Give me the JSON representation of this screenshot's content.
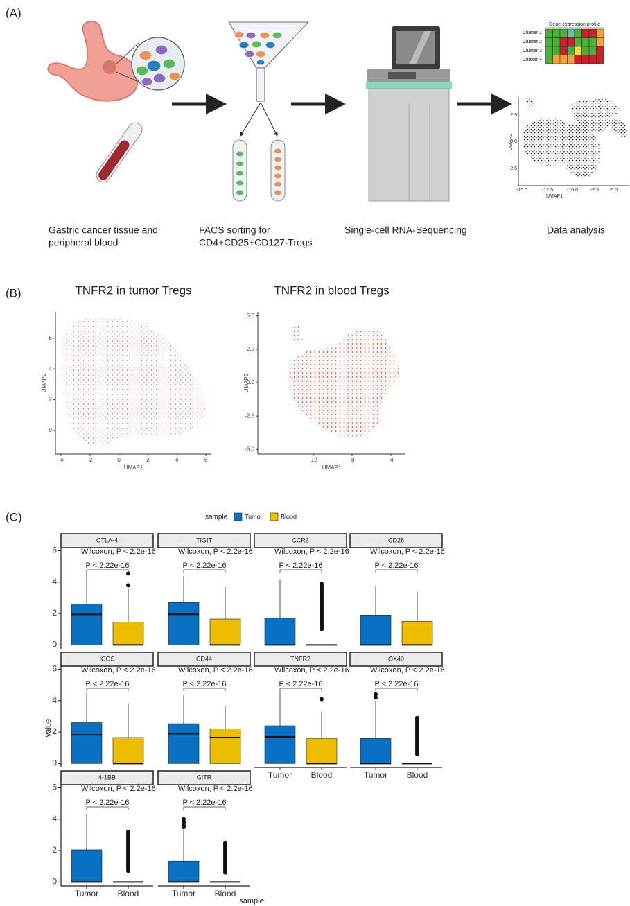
{
  "panel_labels": [
    "(A)",
    "(B)",
    "(C)"
  ],
  "panel_a": {
    "captions": [
      [
        "Gastric cancer tissue and",
        "peripheral blood"
      ],
      [
        "FACS sorting for",
        "CD4+CD25+CD127-Tregs"
      ],
      [
        "Single-cell RNA-Sequencing"
      ],
      [
        "Data analysis"
      ]
    ],
    "heatmap": {
      "title": "Gene expression profile",
      "rows": [
        "Cluster 1",
        "Cluster 2",
        "Cluster 3",
        "Cluster 4"
      ]
    },
    "umap": {
      "x_label": "UMAP1",
      "y_label": "UMAP2",
      "xticks": [
        "-15.0",
        "-12.5",
        "-10.0",
        "-7.5",
        "-5.0"
      ],
      "yticks": [
        "2.5",
        "0.0",
        "-2.5"
      ]
    }
  },
  "chart_data": [
    {
      "type": "scatter",
      "title": "TNFR2 in tumor Tregs",
      "x_label": "UMAP1",
      "y_label": "UMAP2",
      "xlim": [
        -4.38,
        6.38
      ],
      "ylim": [
        -1.53,
        7.7
      ],
      "xticks": [
        -4,
        -2,
        0,
        2,
        4,
        6
      ],
      "yticks": [
        0,
        2,
        4,
        6
      ]
    },
    {
      "type": "scatter",
      "title": "TNFR2 in blood Tregs",
      "x_label": "UMAP1",
      "y_label": "UMAP2",
      "xlim": [
        -17.7,
        -2.5
      ],
      "ylim": [
        -5.35,
        5.3
      ],
      "xticks": [
        -12,
        -8,
        -4
      ],
      "yticks": [
        {
          "value": -5,
          "label": "-5.0"
        },
        {
          "value": -2.5,
          "label": "-2.5"
        },
        {
          "value": 0,
          "label": "0.0"
        },
        {
          "value": 2.5,
          "label": "2.5"
        },
        {
          "value": 5,
          "label": "5.0"
        }
      ]
    },
    {
      "type": "box",
      "legend_title": "sample",
      "x_label": "sample",
      "y_label": "value",
      "groups": [
        {
          "name": "Tumor",
          "color": "#0a70c2"
        },
        {
          "name": "Blood",
          "color": "#ecbd00"
        }
      ],
      "test_label": "Wilcoxon, P < 2.2e-16",
      "p_label": "P < 2.22e-16",
      "ylim": [
        -0.25,
        6.2
      ],
      "yticks": [
        0,
        2,
        4,
        6
      ],
      "facets": [
        {
          "name": "CTLA-4",
          "stats": [
            {
              "min": 0,
              "q1": 0,
              "median": 1.94,
              "q3": 2.6,
              "max": 4.7,
              "outliers": []
            },
            {
              "min": 0,
              "q1": 0,
              "median": 0,
              "q3": 1.45,
              "max": 3.6,
              "outliers": [
                3.8,
                4.55
              ]
            }
          ]
        },
        {
          "name": "TIGIT",
          "stats": [
            {
              "min": 0,
              "q1": 0,
              "median": 1.95,
              "q3": 2.7,
              "max": 4.4,
              "outliers": []
            },
            {
              "min": 0,
              "q1": 0,
              "median": 0,
              "q3": 1.65,
              "max": 3.7,
              "outliers": []
            }
          ]
        },
        {
          "name": "CCR6",
          "stats": [
            {
              "min": 0,
              "q1": 0,
              "median": 0,
              "q3": 1.7,
              "max": 4.2,
              "outliers": []
            },
            {
              "min": 0,
              "q1": 0,
              "median": 0,
              "q3": 0,
              "max": 0,
              "outliers": [
                1.0,
                1.1,
                1.2,
                1.3,
                1.4,
                1.5,
                1.6,
                1.7,
                1.8,
                1.9,
                2.0,
                2.1,
                2.2,
                2.3,
                2.4,
                2.5,
                2.6,
                2.7,
                2.8,
                2.9,
                3.0,
                3.1,
                3.2,
                3.3,
                3.4,
                3.5,
                3.6,
                3.7,
                3.8,
                3.9
              ]
            }
          ]
        },
        {
          "name": "CD28",
          "stats": [
            {
              "min": 0,
              "q1": 0,
              "median": 0,
              "q3": 1.9,
              "max": 3.75,
              "outliers": []
            },
            {
              "min": 0,
              "q1": 0,
              "median": 0,
              "q3": 1.5,
              "max": 3.4,
              "outliers": []
            }
          ]
        },
        {
          "name": "ICOS",
          "stats": [
            {
              "min": 0,
              "q1": 0,
              "median": 1.82,
              "q3": 2.6,
              "max": 4.5,
              "outliers": []
            },
            {
              "min": 0,
              "q1": 0,
              "median": 0,
              "q3": 1.65,
              "max": 3.85,
              "outliers": []
            }
          ]
        },
        {
          "name": "CD44",
          "stats": [
            {
              "min": 0,
              "q1": 0,
              "median": 1.9,
              "q3": 2.53,
              "max": 4.35,
              "outliers": []
            },
            {
              "min": 0,
              "q1": 0,
              "median": 1.65,
              "q3": 2.2,
              "max": 3.7,
              "outliers": []
            }
          ]
        },
        {
          "name": "TNFR2",
          "stats": [
            {
              "min": 0,
              "q1": 0,
              "median": 1.7,
              "q3": 2.4,
              "max": 4.6,
              "outliers": []
            },
            {
              "min": 0,
              "q1": 0,
              "median": 0,
              "q3": 1.6,
              "max": 3.3,
              "outliers": [
                4.1
              ]
            }
          ]
        },
        {
          "name": "OX40",
          "stats": [
            {
              "min": 0,
              "q1": 0,
              "median": 0,
              "q3": 1.6,
              "max": 4.0,
              "outliers": [
                4.2,
                4.4
              ]
            },
            {
              "min": 0,
              "q1": 0,
              "median": 0,
              "q3": 0,
              "max": 0,
              "outliers": [
                0.6,
                0.7,
                0.8,
                0.9,
                1.0,
                1.1,
                1.2,
                1.3,
                1.4,
                1.5,
                1.6,
                1.7,
                1.8,
                1.9,
                2.0,
                2.1,
                2.2,
                2.3,
                2.4,
                2.5,
                2.6,
                2.7,
                2.8,
                2.9
              ]
            }
          ]
        },
        {
          "name": "4-1BB",
          "stats": [
            {
              "min": 0,
              "q1": 0,
              "median": 0,
              "q3": 2.05,
              "max": 4.3,
              "outliers": []
            },
            {
              "min": 0,
              "q1": 0,
              "median": 0,
              "q3": 0,
              "max": 0,
              "outliers": [
                0.7,
                0.8,
                0.9,
                1.0,
                1.1,
                1.2,
                1.3,
                1.4,
                1.5,
                1.6,
                1.7,
                1.8,
                1.9,
                2.0,
                2.1,
                2.2,
                2.3,
                2.4,
                2.5,
                2.6,
                2.7,
                2.8,
                2.9,
                3.0,
                3.1,
                3.2
              ]
            }
          ]
        },
        {
          "name": "GITR",
          "stats": [
            {
              "min": 0,
              "q1": 0,
              "median": 0,
              "q3": 1.33,
              "max": 3.3,
              "outliers": [
                3.5,
                3.6,
                3.8,
                4.0
              ]
            },
            {
              "min": 0,
              "q1": 0,
              "median": 0,
              "q3": 0,
              "max": 0,
              "outliers": [
                0.6,
                0.7,
                0.8,
                0.9,
                1.0,
                1.1,
                1.2,
                1.3,
                1.4,
                1.5,
                1.6,
                1.7,
                1.8,
                1.9,
                2.0,
                2.1,
                2.2,
                2.3,
                2.4,
                2.5
              ]
            }
          ]
        }
      ]
    }
  ]
}
